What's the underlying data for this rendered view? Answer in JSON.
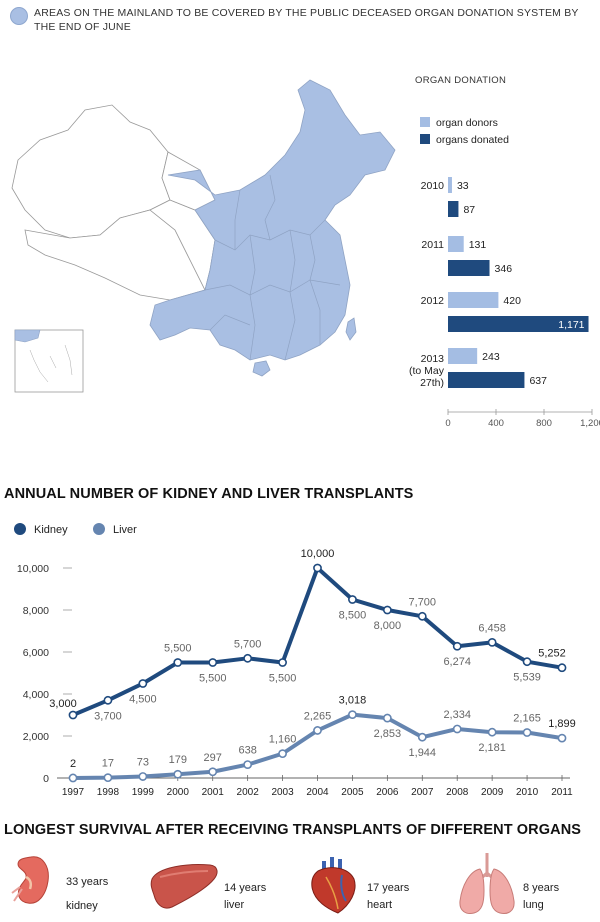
{
  "header": {
    "legend_text": "AREAS ON THE MAINLAND TO BE COVERED BY THE PUBLIC DECEASED ORGAN DONATION SYSTEM BY THE END OF JUNE",
    "legend_color": "#a9bfe3"
  },
  "chart_data": [
    {
      "type": "bar",
      "title": "ORGAN DONATION",
      "orientation": "horizontal",
      "categories": [
        "2010",
        "2011",
        "2012",
        "2013 (to May 27th)"
      ],
      "category_lines": [
        [
          "2010"
        ],
        [
          "2011"
        ],
        [
          "2012"
        ],
        [
          "2013",
          "(to May",
          "27th)"
        ]
      ],
      "series": [
        {
          "name": "organ donors",
          "color": "#a4bde3",
          "values": [
            33,
            131,
            420,
            243
          ]
        },
        {
          "name": "organs donated",
          "color": "#1f4a7e",
          "values": [
            87,
            346,
            1171,
            637
          ]
        }
      ],
      "value_labels": [
        [
          "33",
          "131",
          "420",
          "243"
        ],
        [
          "87",
          "346",
          "1,171",
          "637"
        ]
      ],
      "xlim": [
        0,
        1200
      ],
      "xticks": [
        0,
        400,
        800,
        1200
      ],
      "xtick_labels": [
        "0",
        "400",
        "800",
        "1,200"
      ]
    },
    {
      "type": "line",
      "title": "ANNUAL NUMBER OF KIDNEY AND LIVER TRANSPLANTS",
      "x": [
        "1997",
        "1998",
        "1999",
        "2000",
        "2001",
        "2002",
        "2003",
        "2004",
        "2005",
        "2006",
        "2007",
        "2008",
        "2009",
        "2010",
        "2011"
      ],
      "series": [
        {
          "name": "Kidney",
          "color": "#1f4a7e",
          "values": [
            3000,
            3700,
            4500,
            5500,
            5500,
            5700,
            5500,
            10000,
            8500,
            8000,
            7700,
            6274,
            6458,
            5539,
            5252
          ],
          "labels": [
            "3,000",
            "3,700",
            "4,500",
            "5,500",
            "5,500",
            "5,700",
            "5,500",
            "10,000",
            "8,500",
            "8,000",
            "7,700",
            "6,274",
            "6,458",
            "5,539",
            "5,252"
          ]
        },
        {
          "name": "Liver",
          "color": "#6585b0",
          "values": [
            2,
            17,
            73,
            179,
            297,
            638,
            1160,
            2265,
            3018,
            2853,
            1944,
            2334,
            2181,
            2165,
            1899
          ],
          "labels": [
            "2",
            "17",
            "73",
            "179",
            "297",
            "638",
            "1,160",
            "2,265",
            "3,018",
            "2,853",
            "1,944",
            "2,334",
            "2,181",
            "2,165",
            "1,899"
          ]
        }
      ],
      "ylim": [
        0,
        10000
      ],
      "yticks": [
        0,
        2000,
        4000,
        6000,
        8000,
        10000
      ],
      "ytick_labels": [
        "0",
        "2,000",
        "4,000",
        "6,000",
        "8,000",
        "10,000"
      ]
    }
  ],
  "survival": {
    "title": "LONGEST SURVIVAL  AFTER RECEIVING TRANSPLANTS OF DIFFERENT ORGANS",
    "organs": [
      {
        "years": "33 years",
        "organ": "kidney",
        "icon": "kidney-icon"
      },
      {
        "years": "14 years",
        "organ": "liver",
        "icon": "liver-icon"
      },
      {
        "years": "17 years",
        "organ": "heart",
        "icon": "heart-icon"
      },
      {
        "years": "8 years",
        "organ": "lung",
        "icon": "lung-icon"
      }
    ]
  }
}
